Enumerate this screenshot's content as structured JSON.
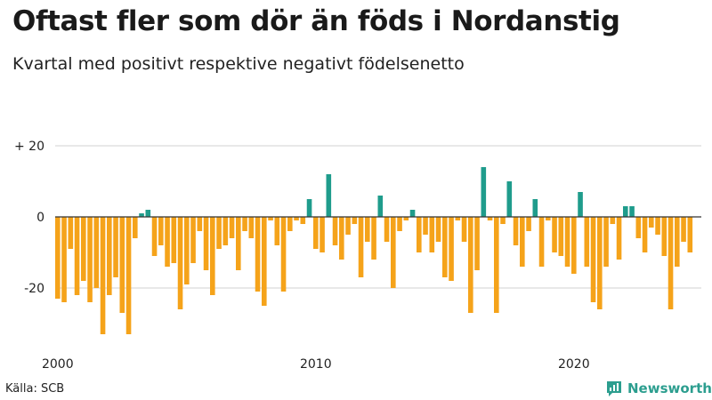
{
  "header": {
    "title": "Oftast fler som dör än föds i Nordanstig",
    "subtitle": "Kvartal med positivt respektive negativt födelsenetto"
  },
  "footer": {
    "source": "Källa: SCB",
    "brand": "Newsworthy"
  },
  "colors": {
    "positive": "#1f9c8c",
    "negative": "#f5a31a",
    "grid": "#d0d0d0",
    "zero_line": "#333333",
    "brand": "#2c9e8f"
  },
  "icons": {
    "brand_logo": "bar-chart-speech-bubble-icon"
  },
  "chart_data": {
    "type": "bar",
    "title": "Oftast fler som dör än föds i Nordanstig",
    "subtitle": "Kvartal med positivt respektive negativt födelsenetto",
    "xlabel": "",
    "ylabel": "",
    "ylim": [
      -35,
      22
    ],
    "yticks": [
      20,
      0,
      -20
    ],
    "ytick_labels": [
      "+ 20",
      "0",
      "-20"
    ],
    "x_tick_labels": [
      {
        "label": "2000",
        "index": 0
      },
      {
        "label": "2010",
        "index": 40
      },
      {
        "label": "2020",
        "index": 80
      }
    ],
    "start": "2000 Q1",
    "period": "quarter",
    "values": [
      -23,
      -24,
      -9,
      -22,
      -18,
      -24,
      -20,
      -33,
      -22,
      -17,
      -27,
      -33,
      -6,
      1,
      2,
      -11,
      -8,
      -14,
      -13,
      -26,
      -19,
      -13,
      -4,
      -15,
      -22,
      -9,
      -8,
      -6,
      -15,
      -4,
      -6,
      -21,
      -25,
      -1,
      -8,
      -21,
      -4,
      -1,
      -2,
      5,
      -9,
      -10,
      12,
      -8,
      -12,
      -5,
      -2,
      -17,
      -7,
      -12,
      6,
      -7,
      -20,
      -4,
      -1,
      2,
      -10,
      -5,
      -10,
      -7,
      -17,
      -18,
      -1,
      -7,
      -27,
      -15,
      14,
      -1,
      -27,
      -2,
      10,
      -8,
      -14,
      -4,
      5,
      -14,
      -1,
      -10,
      -11,
      -14,
      -16,
      7,
      -14,
      -24,
      -26,
      -14,
      -2,
      -12,
      3,
      3,
      -6,
      -10,
      -3,
      -5,
      -11,
      -26,
      -14,
      -7,
      -10
    ]
  }
}
